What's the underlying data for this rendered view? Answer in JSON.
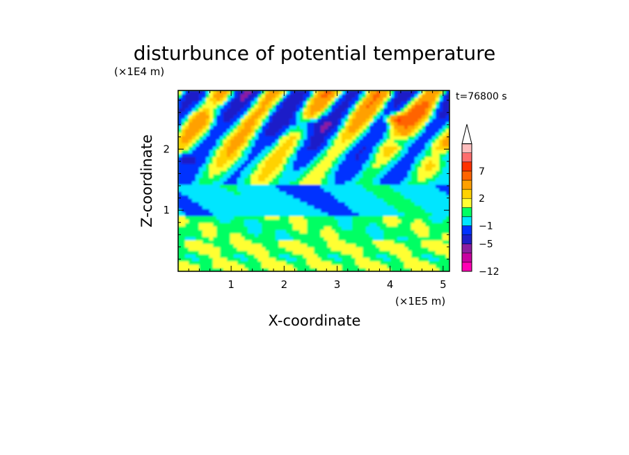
{
  "chart_data": {
    "type": "heatmap",
    "title": "disturbunce of potential temperature",
    "xlabel": "X-coordinate",
    "ylabel": "Z-coordinate",
    "x_unit": "(×1E5 m)",
    "y_unit": "(×1E4 m)",
    "time_label": "t=76800 s",
    "xlim": [
      0,
      5.12
    ],
    "ylim": [
      0,
      2.96
    ],
    "x_ticks": [
      1,
      2,
      3,
      4,
      5
    ],
    "y_ticks": [
      1,
      2
    ],
    "colorbar": {
      "levels": [
        -12,
        -9,
        -7,
        -5,
        -3,
        -1,
        0,
        1,
        2,
        3,
        5,
        7,
        9,
        11
      ],
      "labels": [
        -12,
        -5,
        -1,
        2,
        7
      ],
      "label_text": [
        "−12",
        "−5",
        "−1",
        "2",
        "7"
      ],
      "colors": [
        "#ff00b4",
        "#c800a0",
        "#8c1ea0",
        "#1e1ec8",
        "#0032ff",
        "#00e6ff",
        "#00ff64",
        "#ffff32",
        "#ffd200",
        "#ffa000",
        "#ff6400",
        "#ff3200",
        "#ff6e6e",
        "#ffbebe"
      ],
      "extend_max": true
    },
    "field_description_levels": {
      "z_0_to_0.5": "yellow/orange bands (0 to 2)",
      "z_0.5_to_0.9": "yellow and green (0 to 1)",
      "z_1.0_to_1.3": "cyan/light green (-1 to 0)",
      "z_1.5_to_2.9": "alternating orange/red and blue (-5 to 7) wave pattern",
      "max_region": "x≈4.1, z≈2.5, value≈9"
    }
  }
}
